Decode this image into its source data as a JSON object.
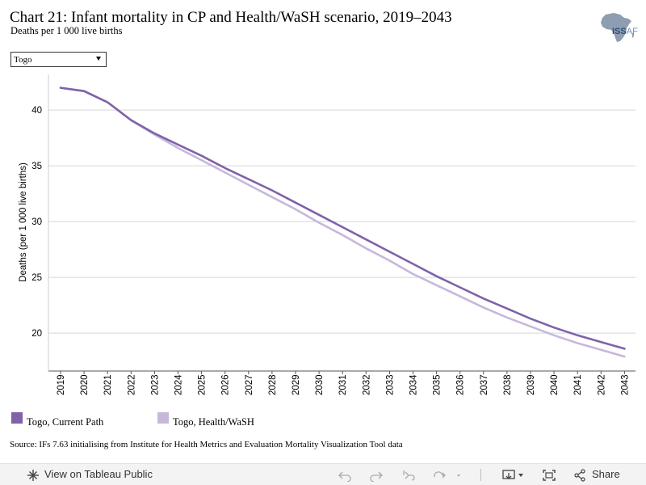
{
  "header": {
    "title": "Chart 21: Infant mortality in CP and Health/WaSH scenario, 2019–2043",
    "subtitle": "Deaths per 1 000 live births",
    "logo_text": "ISS",
    "logo_text_accent": "AF"
  },
  "filter": {
    "selected": "Togo"
  },
  "colors": {
    "current_path": "#7f62a8",
    "health_wash": "#c7b8da",
    "grid": "#d6d6d6",
    "axis": "#555555"
  },
  "chart_data": {
    "type": "line",
    "title": "Chart 21: Infant mortality in CP and Health/WaSH scenario, 2019–2043",
    "subtitle": "Deaths per 1 000 live births",
    "xlabel": "",
    "ylabel": "Deaths (per 1 000 live births)",
    "x": [
      "2019",
      "2020",
      "2021",
      "2022",
      "2023",
      "2024",
      "2025",
      "2026",
      "2027",
      "2028",
      "2029",
      "2030",
      "2031",
      "2032",
      "2033",
      "2034",
      "2035",
      "2036",
      "2037",
      "2038",
      "2039",
      "2040",
      "2041",
      "2042",
      "2043"
    ],
    "ylim": [
      16.6,
      43.2
    ],
    "yticks": [
      20,
      25,
      30,
      35,
      40
    ],
    "grid": "horizontal",
    "legend_position": "bottom",
    "series": [
      {
        "name": "Togo, Current Path",
        "color": "#7f62a8",
        "values": [
          42.0,
          41.7,
          40.7,
          39.1,
          37.9,
          36.9,
          35.9,
          34.8,
          33.8,
          32.8,
          31.7,
          30.6,
          29.5,
          28.4,
          27.3,
          26.2,
          25.1,
          24.1,
          23.1,
          22.2,
          21.3,
          20.5,
          19.8,
          19.2,
          18.6
        ]
      },
      {
        "name": "Togo, Health/WaSH",
        "color": "#c7b8da",
        "values": [
          42.0,
          41.7,
          40.7,
          39.1,
          37.8,
          36.6,
          35.5,
          34.4,
          33.3,
          32.2,
          31.1,
          29.9,
          28.8,
          27.6,
          26.5,
          25.3,
          24.3,
          23.3,
          22.3,
          21.4,
          20.6,
          19.8,
          19.1,
          18.5,
          17.9
        ]
      }
    ]
  },
  "source": "Source: IFs 7.63 initialising from Institute for Health Metrics and Evaluation Mortality Visualization Tool data",
  "footer": {
    "view_label": "View on Tableau Public",
    "share_label": "Share"
  }
}
